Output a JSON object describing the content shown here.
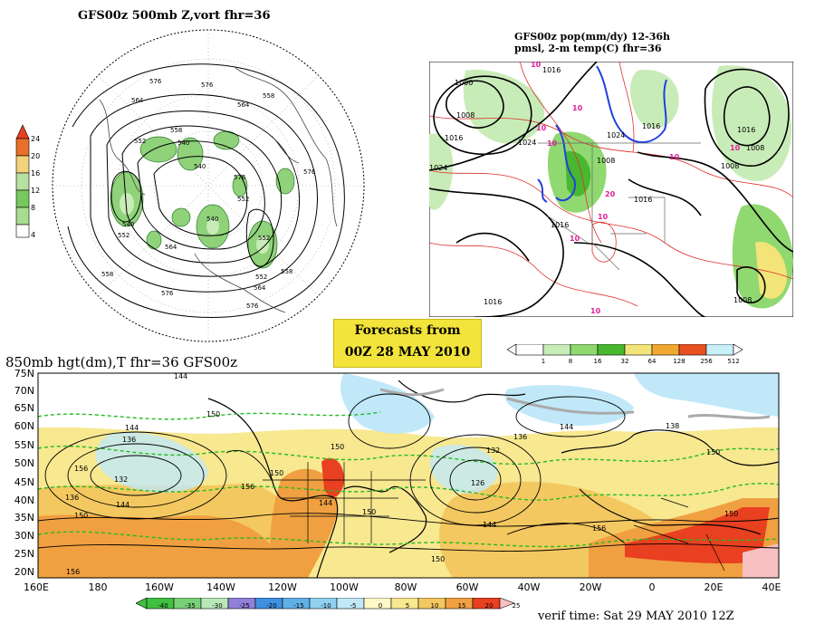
{
  "panel_vort": {
    "title": "GFS00z   500mb  Z,vort      fhr=36",
    "colorbar": {
      "labels": [
        "24",
        "20",
        "16",
        "12",
        "8",
        "4"
      ],
      "colors": [
        "#e8702a",
        "#f2d27a",
        "#b8e0a0",
        "#78c860",
        "#a8dc90",
        "#e8f4e0"
      ]
    },
    "contour_labels": [
      "576",
      "576",
      "564",
      "564",
      "558",
      "552",
      "540",
      "540",
      "540",
      "552",
      "552",
      "576",
      "576",
      "540",
      "558",
      "564",
      "552",
      "558",
      "558",
      "564",
      "576",
      "576",
      "552"
    ]
  },
  "panel_pop": {
    "title_line1": "GFS00z  pop(mm/dy)  12-36h",
    "title_line2": "pmsl, 2-m temp(C)   fhr=36",
    "contour_labels": [
      "1000",
      "1008",
      "1016",
      "1024",
      "1016",
      "1024",
      "1008",
      "1024",
      "1016",
      "1016",
      "1016",
      "1008",
      "1008",
      "1016",
      "1016",
      "1008"
    ],
    "temp_labels": [
      "10",
      "10",
      "10",
      "10",
      "10",
      "10",
      "10",
      "10",
      "20",
      "10"
    ],
    "colorbar": {
      "labels": [
        "1",
        "8",
        "16",
        "32",
        "64",
        "128",
        "256",
        "512"
      ],
      "colors": [
        "#ffffff",
        "#c8ecb8",
        "#90d870",
        "#48b830",
        "#f2e478",
        "#f0a830",
        "#e85020",
        "#c8f0f8"
      ]
    }
  },
  "stamp": {
    "line1": "Forecasts from",
    "line2": "00Z 28 MAY 2010"
  },
  "panel_850": {
    "title": "850mb hgt(dm),T   fhr=36  GFS00z",
    "lat_labels": [
      "75N",
      "70N",
      "65N",
      "60N",
      "55N",
      "50N",
      "45N",
      "40N",
      "35N",
      "30N",
      "25N",
      "20N"
    ],
    "lon_labels": [
      "160E",
      "180",
      "160W",
      "140W",
      "120W",
      "100W",
      "80W",
      "60W",
      "40W",
      "20W",
      "0",
      "20E",
      "40E"
    ],
    "contour_labels": [
      "144",
      "150",
      "144",
      "136",
      "132",
      "136",
      "144",
      "150",
      "156",
      "150",
      "150",
      "144",
      "156",
      "150",
      "132",
      "136",
      "126",
      "144",
      "156",
      "138",
      "144",
      "150",
      "150",
      "150",
      "156"
    ],
    "colorbar": {
      "labels": [
        "-40",
        "-35",
        "-30",
        "-25",
        "-20",
        "-15",
        "-10",
        "-5",
        "0",
        "5",
        "10",
        "15",
        "20",
        "25"
      ],
      "colors": [
        "#40c040",
        "#78d078",
        "#b8e8b8",
        "#9080d8",
        "#4090e0",
        "#60b0e8",
        "#90d0f0",
        "#c0e8f8",
        "#fff8c8",
        "#f8e890",
        "#f4c860",
        "#f0a040",
        "#e84020",
        "#f8c0c0"
      ]
    },
    "verif": "verif time: Sat 29 MAY 2010 12Z"
  }
}
